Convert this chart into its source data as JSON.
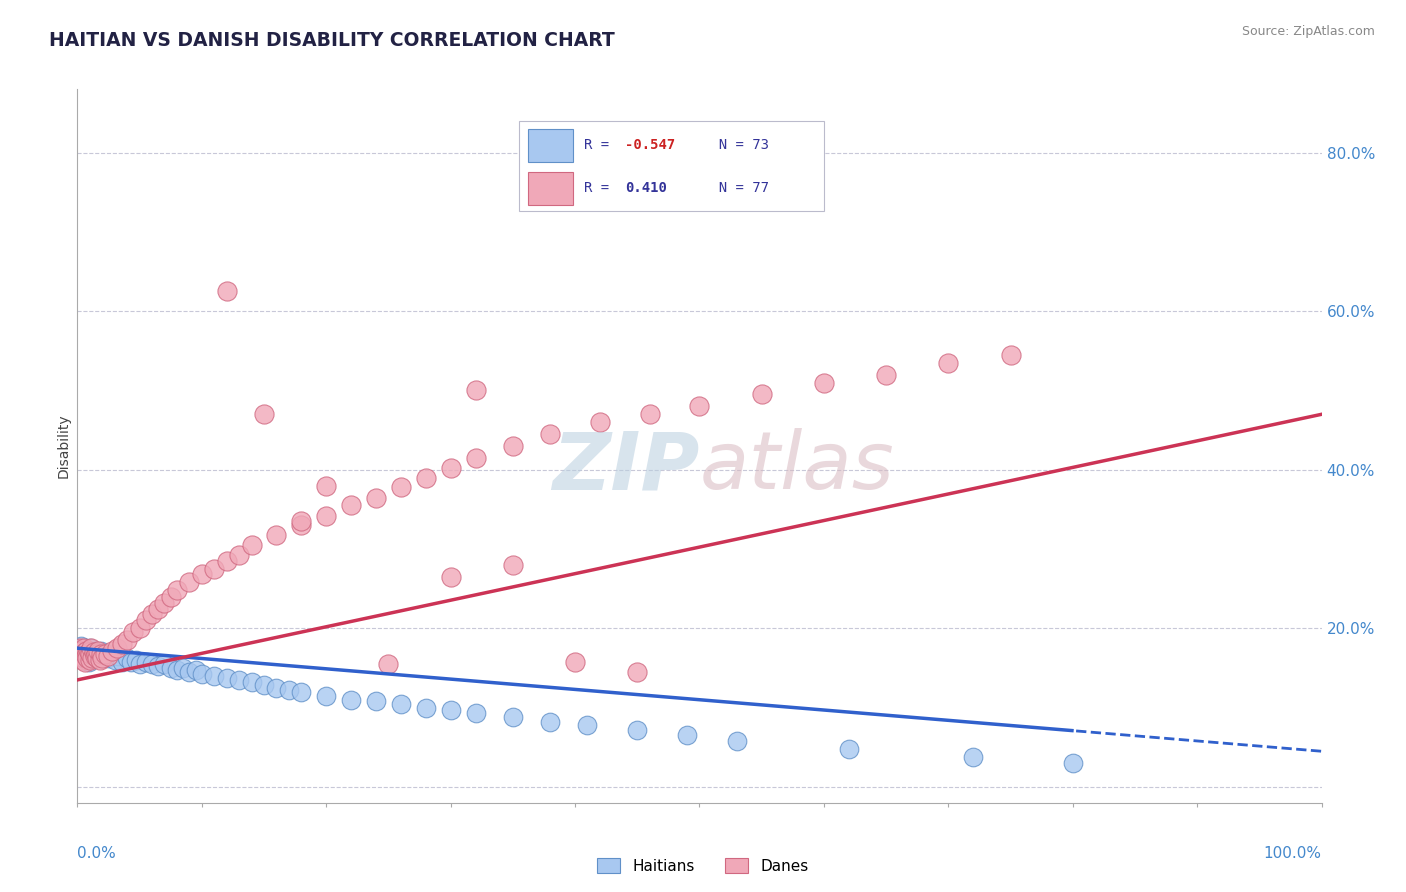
{
  "title": "HAITIAN VS DANISH DISABILITY CORRELATION CHART",
  "source": "Source: ZipAtlas.com",
  "ylabel": "Disability",
  "xlim": [
    0.0,
    1.0
  ],
  "ylim": [
    -0.02,
    0.88
  ],
  "yticks": [
    0.0,
    0.2,
    0.4,
    0.6,
    0.8
  ],
  "ytick_labels": [
    "20.0%",
    "40.0%",
    "60.0%",
    "80.0%"
  ],
  "background_color": "#ffffff",
  "grid_color": "#c8c8d8",
  "haitian_color": "#a8c8f0",
  "haitian_edge_color": "#6090c8",
  "dane_color": "#f0a8b8",
  "dane_edge_color": "#d06880",
  "blue_line_color": "#3060cc",
  "pink_line_color": "#cc3355",
  "legend_R_haitian": "-0.547",
  "legend_N_haitian": "73",
  "legend_R_dane": "0.410",
  "legend_N_dane": "77",
  "haitian_x": [
    0.001,
    0.002,
    0.002,
    0.003,
    0.003,
    0.004,
    0.004,
    0.005,
    0.005,
    0.006,
    0.006,
    0.007,
    0.007,
    0.008,
    0.008,
    0.009,
    0.009,
    0.01,
    0.01,
    0.011,
    0.012,
    0.013,
    0.014,
    0.015,
    0.016,
    0.017,
    0.018,
    0.019,
    0.02,
    0.022,
    0.025,
    0.028,
    0.03,
    0.033,
    0.036,
    0.04,
    0.043,
    0.047,
    0.05,
    0.055,
    0.06,
    0.065,
    0.07,
    0.075,
    0.08,
    0.085,
    0.09,
    0.095,
    0.1,
    0.11,
    0.12,
    0.13,
    0.14,
    0.15,
    0.16,
    0.17,
    0.18,
    0.2,
    0.22,
    0.24,
    0.26,
    0.28,
    0.3,
    0.32,
    0.35,
    0.38,
    0.41,
    0.45,
    0.49,
    0.53,
    0.62,
    0.72,
    0.8
  ],
  "haitian_y": [
    0.175,
    0.172,
    0.168,
    0.178,
    0.165,
    0.173,
    0.162,
    0.17,
    0.168,
    0.175,
    0.16,
    0.172,
    0.165,
    0.168,
    0.163,
    0.17,
    0.158,
    0.168,
    0.175,
    0.162,
    0.17,
    0.168,
    0.165,
    0.172,
    0.162,
    0.168,
    0.165,
    0.172,
    0.168,
    0.165,
    0.162,
    0.168,
    0.16,
    0.165,
    0.158,
    0.162,
    0.158,
    0.16,
    0.155,
    0.158,
    0.155,
    0.152,
    0.155,
    0.15,
    0.148,
    0.15,
    0.145,
    0.148,
    0.142,
    0.14,
    0.138,
    0.135,
    0.132,
    0.128,
    0.125,
    0.122,
    0.12,
    0.115,
    0.11,
    0.108,
    0.105,
    0.1,
    0.097,
    0.093,
    0.088,
    0.082,
    0.078,
    0.072,
    0.065,
    0.058,
    0.048,
    0.038,
    0.03
  ],
  "dane_x": [
    0.001,
    0.002,
    0.002,
    0.003,
    0.003,
    0.004,
    0.004,
    0.005,
    0.005,
    0.006,
    0.006,
    0.007,
    0.007,
    0.008,
    0.008,
    0.009,
    0.01,
    0.01,
    0.011,
    0.012,
    0.013,
    0.014,
    0.015,
    0.016,
    0.017,
    0.018,
    0.019,
    0.02,
    0.022,
    0.025,
    0.028,
    0.032,
    0.036,
    0.04,
    0.045,
    0.05,
    0.055,
    0.06,
    0.065,
    0.07,
    0.075,
    0.08,
    0.09,
    0.1,
    0.11,
    0.12,
    0.13,
    0.14,
    0.16,
    0.18,
    0.2,
    0.22,
    0.24,
    0.26,
    0.28,
    0.3,
    0.32,
    0.35,
    0.38,
    0.42,
    0.46,
    0.5,
    0.55,
    0.6,
    0.65,
    0.7,
    0.75,
    0.3,
    0.35,
    0.2,
    0.15,
    0.25,
    0.18,
    0.4,
    0.45,
    0.12,
    0.32
  ],
  "dane_y": [
    0.172,
    0.168,
    0.175,
    0.165,
    0.172,
    0.16,
    0.168,
    0.175,
    0.163,
    0.17,
    0.158,
    0.172,
    0.165,
    0.168,
    0.162,
    0.17,
    0.16,
    0.168,
    0.175,
    0.162,
    0.17,
    0.165,
    0.168,
    0.162,
    0.172,
    0.16,
    0.168,
    0.162,
    0.168,
    0.165,
    0.172,
    0.175,
    0.18,
    0.185,
    0.195,
    0.2,
    0.21,
    0.218,
    0.225,
    0.232,
    0.24,
    0.248,
    0.258,
    0.268,
    0.275,
    0.285,
    0.292,
    0.305,
    0.318,
    0.33,
    0.342,
    0.355,
    0.365,
    0.378,
    0.39,
    0.402,
    0.415,
    0.43,
    0.445,
    0.46,
    0.47,
    0.48,
    0.495,
    0.51,
    0.52,
    0.535,
    0.545,
    0.265,
    0.28,
    0.38,
    0.47,
    0.155,
    0.335,
    0.158,
    0.145,
    0.625,
    0.5
  ]
}
